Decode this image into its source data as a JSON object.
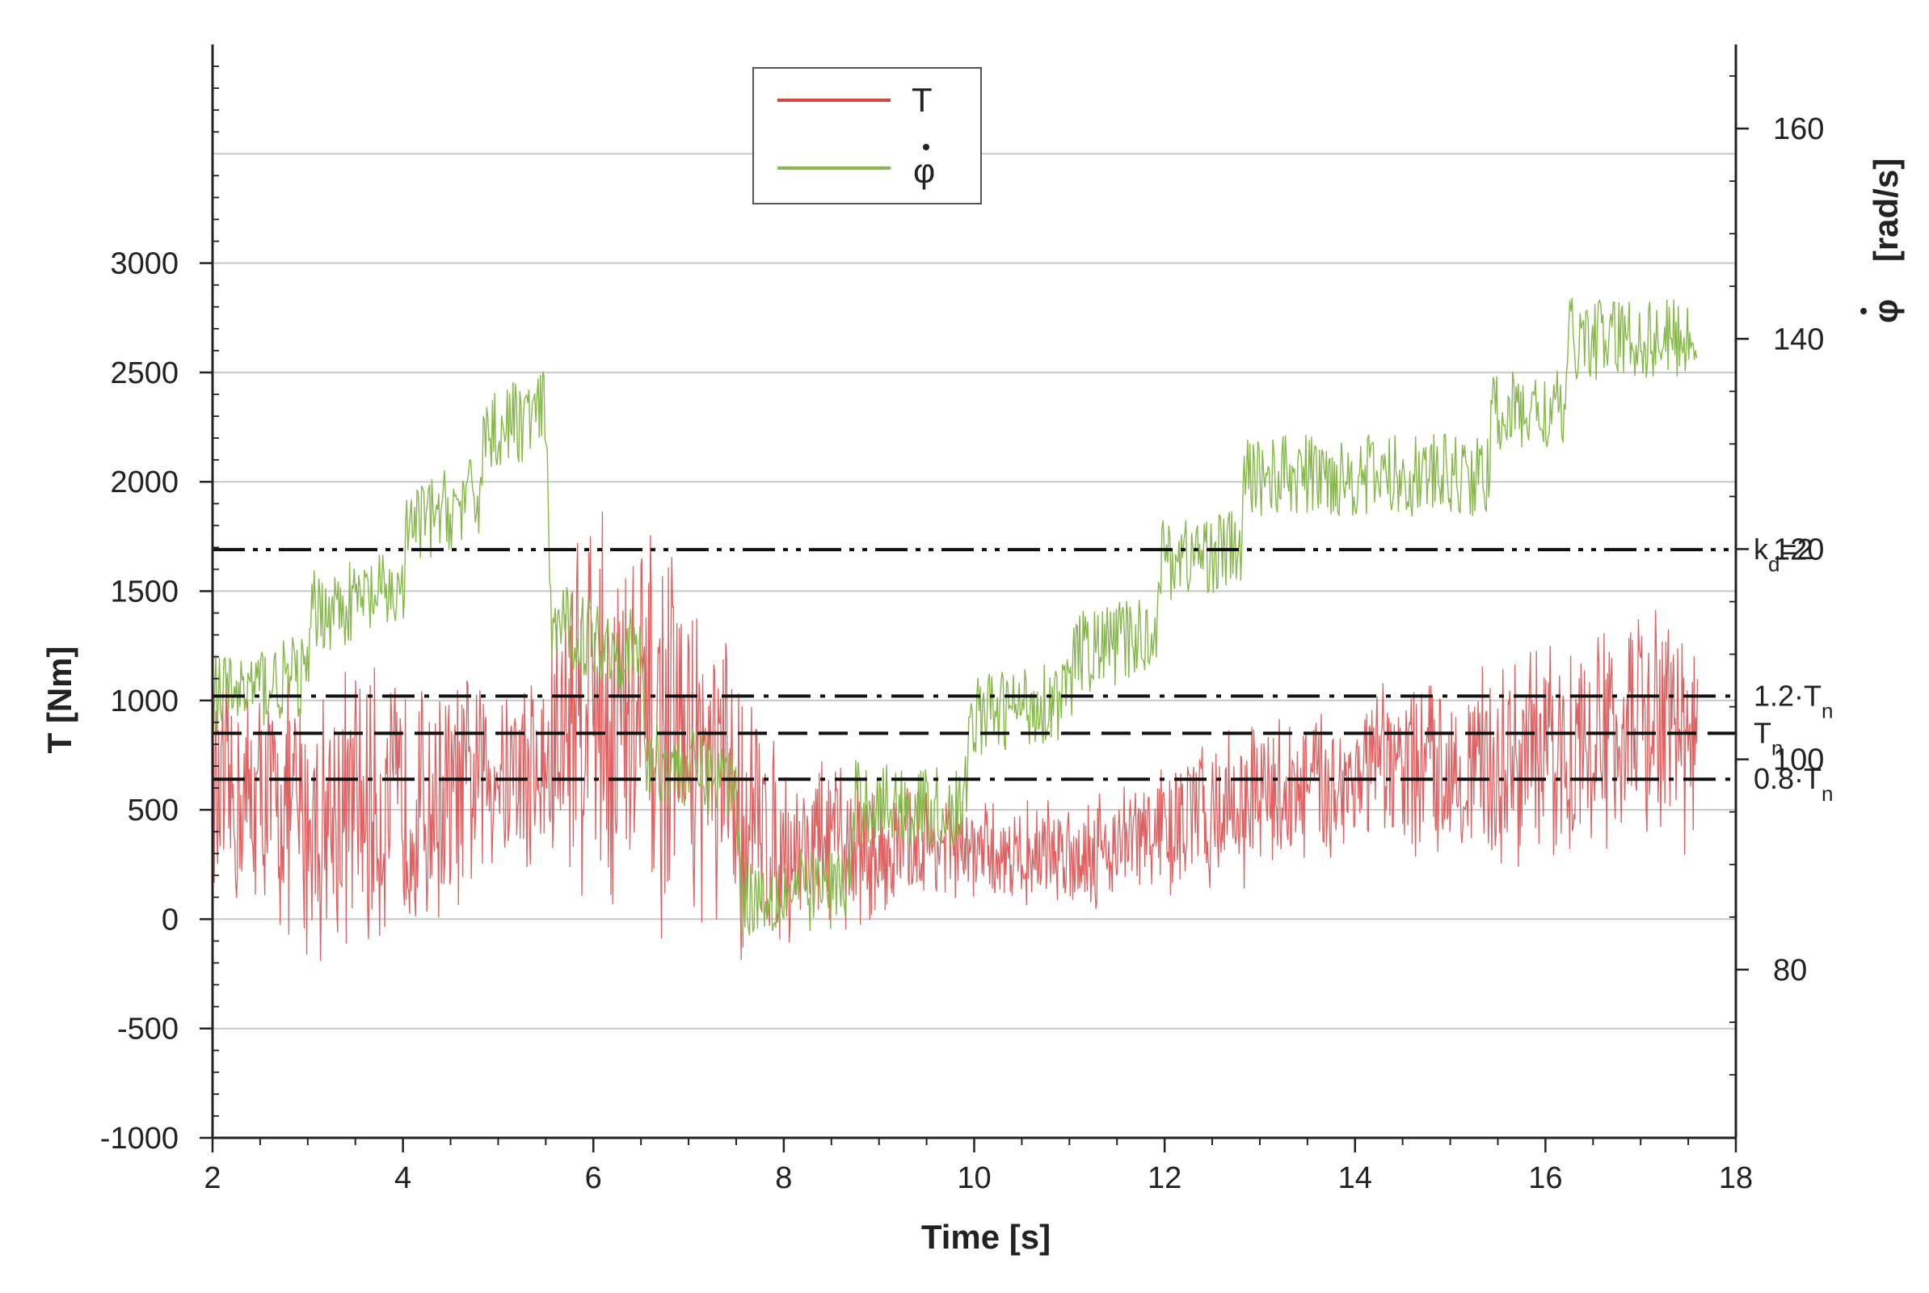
{
  "chart_data": {
    "type": "line",
    "xlabel": "Time  [s]",
    "ylabel": "T  [Nm]",
    "y2label": "[rad/s]",
    "y2symbol": "φ",
    "xlim": [
      2,
      18
    ],
    "ylim": [
      -1000,
      4000
    ],
    "y2lim": [
      64,
      168
    ],
    "x_ticks": [
      "2",
      "4",
      "6",
      "8",
      "10",
      "12",
      "14",
      "16",
      "18"
    ],
    "y_ticks": [
      "-1000",
      "-500",
      "0",
      "500",
      "1000",
      "1500",
      "2000",
      "2500",
      "3000"
    ],
    "y2_ticks": [
      "80",
      "100",
      "120",
      "140",
      "160"
    ],
    "grid": true,
    "legend": {
      "position": "top-center",
      "entries": [
        {
          "label": "T",
          "color": "#d94545"
        },
        {
          "label": "φ",
          "color": "#86b84a"
        }
      ]
    },
    "reference_lines": [
      {
        "name": "kd",
        "value": 1690,
        "label_main": "k",
        "label_sub": "d",
        "label_suffix": "=2",
        "style": "dash-dot-dot"
      },
      {
        "name": "1.2Tn",
        "value": 1020,
        "label_main": "1.2·T",
        "label_sub": "n",
        "label_suffix": "",
        "style": "dash-dot"
      },
      {
        "name": "Tn",
        "value": 850,
        "label_main": "T",
        "label_sub": "n",
        "label_suffix": "",
        "style": "dash"
      },
      {
        "name": "0.8Tn",
        "value": 640,
        "label_main": "0.8·T",
        "label_sub": "n",
        "label_suffix": "",
        "style": "dash-dot"
      }
    ],
    "series": [
      {
        "name": "T",
        "axis": "left",
        "color": "#d94545",
        "x": [
          2,
          2.5,
          3,
          3.5,
          4,
          4.5,
          5,
          5.5,
          5.8,
          6,
          6.2,
          6.5,
          7,
          7.5,
          8,
          8.5,
          9,
          9.5,
          10,
          10.5,
          11,
          11.5,
          12,
          12.5,
          13,
          13.5,
          14,
          14.5,
          15,
          15.5,
          16,
          16.5,
          17,
          17.6
        ],
        "mean": [
          500,
          550,
          450,
          500,
          500,
          550,
          700,
          650,
          1000,
          1100,
          900,
          850,
          800,
          500,
          300,
          350,
          300,
          350,
          300,
          300,
          300,
          350,
          400,
          500,
          550,
          600,
          650,
          700,
          700,
          700,
          750,
          800,
          900,
          850
        ],
        "amplitude": [
          600,
          600,
          700,
          750,
          650,
          600,
          500,
          600,
          1000,
          1100,
          1000,
          1100,
          800,
          800,
          450,
          450,
          350,
          300,
          250,
          250,
          300,
          300,
          350,
          400,
          400,
          400,
          400,
          450,
          450,
          500,
          550,
          550,
          600,
          600
        ]
      },
      {
        "name": "φ",
        "axis": "right",
        "color": "#86b84a",
        "x": [
          2,
          3,
          3.05,
          4,
          4.05,
          4.8,
          4.85,
          5.5,
          5.55,
          6.5,
          6.55,
          7.5,
          7.55,
          8.7,
          8.75,
          9.9,
          9.95,
          11,
          11.05,
          11.9,
          11.95,
          12.8,
          12.85,
          15.4,
          15.45,
          16.2,
          16.25,
          17.6
        ],
        "values": [
          106,
          108,
          114,
          116,
          122,
          125,
          131,
          133,
          113,
          110,
          100,
          98,
          87,
          88,
          96,
          95,
          104,
          106,
          110,
          112,
          119,
          120,
          127,
          127,
          133,
          133,
          140,
          140
        ],
        "amplitude": 4
      }
    ]
  }
}
